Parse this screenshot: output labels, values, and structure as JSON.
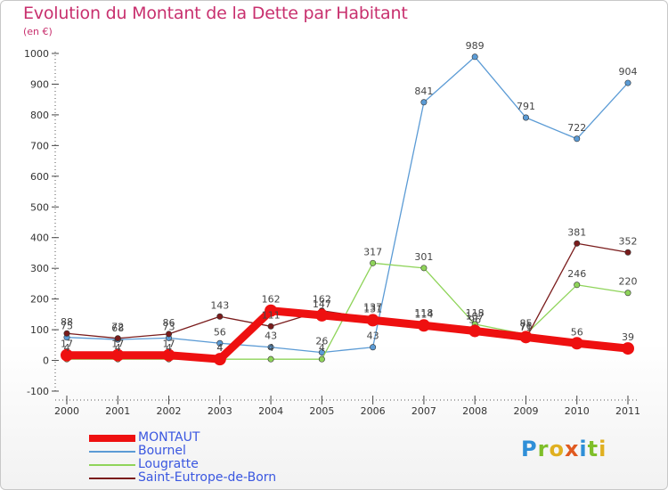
{
  "title": "Evolution du Montant de la Dette par Habitant",
  "subtitle": "(en €)",
  "logo": {
    "text": "Proxiti",
    "letters": [
      {
        "ch": "P",
        "color": "#2f8fd8"
      },
      {
        "ch": "r",
        "color": "#7fbf2a"
      },
      {
        "ch": "o",
        "color": "#e0b020"
      },
      {
        "ch": "x",
        "color": "#e05a20"
      },
      {
        "ch": "i",
        "color": "#2f8fd8"
      },
      {
        "ch": "t",
        "color": "#7fbf2a"
      },
      {
        "ch": "i",
        "color": "#e0b020"
      }
    ]
  },
  "chart_data": {
    "type": "line",
    "title": "Evolution du Montant de la Dette par Habitant",
    "ylabel": "(en €)",
    "xlabel": "",
    "x": [
      "2000",
      "2001",
      "2002",
      "2003",
      "2004",
      "2005",
      "2006",
      "2007",
      "2008",
      "2009",
      "2010",
      "2011"
    ],
    "ylim": [
      -100,
      1000
    ],
    "yticks": [
      -100,
      0,
      100,
      200,
      300,
      400,
      500,
      600,
      700,
      800,
      900,
      1000
    ],
    "grid": false,
    "legend_position": "bottom-left",
    "series": [
      {
        "name": "MONTAUT",
        "color": "#ee1010",
        "values": [
          17,
          17,
          17,
          4,
          162,
          147,
          131,
          114,
          96,
          76,
          56,
          39
        ]
      },
      {
        "name": "Bournel",
        "color": "#5b9bd5",
        "values": [
          75,
          68,
          73,
          56,
          43,
          26,
          43,
          841,
          989,
          791,
          722,
          904
        ]
      },
      {
        "name": "Lougratte",
        "color": "#8fd45a",
        "values": [
          4,
          4,
          4,
          4,
          4,
          4,
          317,
          301,
          118,
          85,
          246,
          220
        ]
      },
      {
        "name": "Saint-Eutrope-de-Born",
        "color": "#7a1c1c",
        "values": [
          88,
          72,
          86,
          143,
          111,
          162,
          137,
          118,
          107,
          71,
          381,
          352
        ]
      }
    ]
  }
}
